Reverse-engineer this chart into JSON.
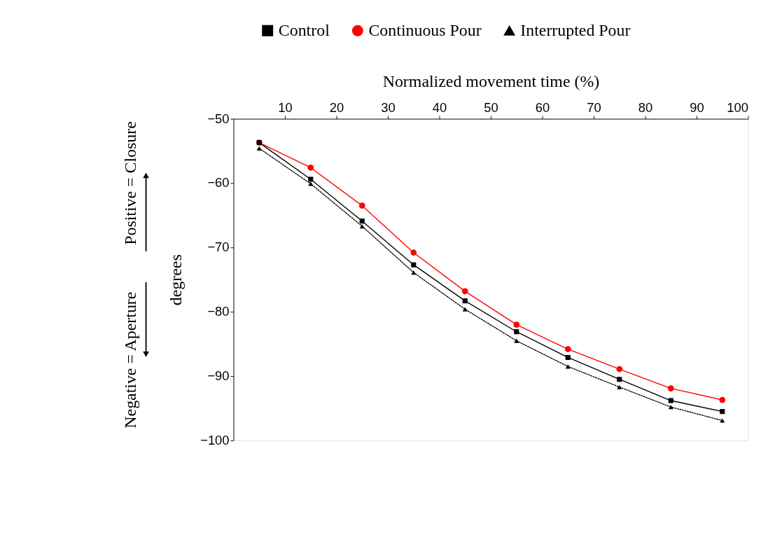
{
  "chart_data": {
    "type": "line",
    "xlabel": "Normalized movement time (%)",
    "ylabel": "degrees",
    "x": [
      5,
      15,
      25,
      35,
      45,
      55,
      65,
      75,
      85,
      95
    ],
    "series": [
      {
        "name": "Control",
        "color": "#000000",
        "marker": "square",
        "line_style": "solid",
        "values": [
          -53.7,
          -59.4,
          -65.9,
          -72.7,
          -78.3,
          -83.1,
          -87.1,
          -90.5,
          -93.8,
          -95.5
        ]
      },
      {
        "name": "Continuous Pour",
        "color": "#ff0000",
        "marker": "circle",
        "line_style": "solid",
        "values": [
          -53.7,
          -57.6,
          -63.5,
          -70.8,
          -76.8,
          -82.0,
          -85.8,
          -88.9,
          -91.9,
          -93.7
        ]
      },
      {
        "name": "Interrupted Pour",
        "color": "#000000",
        "marker": "triangle",
        "line_style": "dotted",
        "values": [
          -54.6,
          -60.1,
          -66.7,
          -73.9,
          -79.6,
          -84.5,
          -88.5,
          -91.7,
          -94.8,
          -96.9
        ]
      }
    ],
    "xlim": [
      0,
      100
    ],
    "xticks": [
      10,
      20,
      30,
      40,
      50,
      60,
      70,
      80,
      90,
      100
    ],
    "ylim": [
      -100,
      -50
    ],
    "yticks": [
      -50,
      -60,
      -70,
      -80,
      -90,
      -100
    ],
    "annotations": [
      "Positive = Closure",
      "Negative = Aperture"
    ],
    "grid": false,
    "legend": "top"
  }
}
